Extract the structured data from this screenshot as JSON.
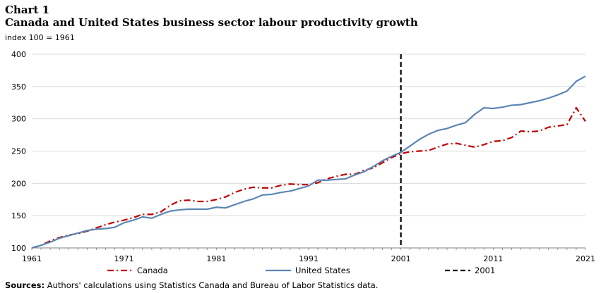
{
  "header": {
    "chart_label": "Chart 1",
    "title": "Canada and United States business sector labour productivity growth",
    "subtitle": "index 100 = 1961"
  },
  "source": {
    "prefix": "Sources:",
    "text": "Authors' calculations using Statistics Canada and Bureau of Labor Statistics data."
  },
  "colors": {
    "canada": "#c00000",
    "united_states": "#5b86b5",
    "marker_2001": "#000000",
    "grid": "#d9d9d9",
    "axis": "#808080"
  },
  "chart_data": {
    "type": "line",
    "title": "Canada and United States business sector labour productivity growth",
    "subtitle": "index 100 = 1961",
    "xlabel": "",
    "ylabel": "",
    "xlim": [
      1961,
      2021
    ],
    "ylim": [
      100,
      400
    ],
    "x_ticks": [
      1961,
      1971,
      1981,
      1991,
      2001,
      2011,
      2021
    ],
    "y_ticks": [
      100,
      150,
      200,
      250,
      300,
      350,
      400
    ],
    "grid": true,
    "legend_position": "bottom",
    "x": [
      1961,
      1962,
      1963,
      1964,
      1965,
      1966,
      1967,
      1968,
      1969,
      1970,
      1971,
      1972,
      1973,
      1974,
      1975,
      1976,
      1977,
      1978,
      1979,
      1980,
      1981,
      1982,
      1983,
      1984,
      1985,
      1986,
      1987,
      1988,
      1989,
      1990,
      1991,
      1992,
      1993,
      1994,
      1995,
      1996,
      1997,
      1998,
      1999,
      2000,
      2001,
      2002,
      2003,
      2004,
      2005,
      2006,
      2007,
      2008,
      2009,
      2010,
      2011,
      2012,
      2013,
      2014,
      2015,
      2016,
      2017,
      2018,
      2019,
      2020,
      2021
    ],
    "series": [
      {
        "name": "Canada",
        "style": "dash-dot",
        "values": [
          100,
          104,
          111,
          116,
          120,
          122,
          126,
          131,
          136,
          140,
          143,
          147,
          152,
          152,
          156,
          166,
          173,
          174,
          172,
          172,
          175,
          179,
          186,
          191,
          194,
          193,
          193,
          197,
          199,
          198,
          198,
          201,
          207,
          211,
          214,
          214,
          220,
          224,
          232,
          240,
          246,
          249,
          250,
          251,
          256,
          261,
          262,
          259,
          256,
          260,
          265,
          266,
          271,
          281,
          280,
          281,
          287,
          289,
          291,
          317,
          296
        ]
      },
      {
        "name": "United States",
        "style": "solid",
        "values": [
          100,
          104,
          109,
          115,
          119,
          123,
          127,
          129,
          130,
          132,
          139,
          143,
          148,
          146,
          152,
          157,
          159,
          160,
          160,
          160,
          163,
          162,
          167,
          172,
          176,
          182,
          183,
          186,
          188,
          192,
          196,
          205,
          205,
          206,
          207,
          213,
          218,
          226,
          235,
          242,
          248,
          258,
          268,
          276,
          282,
          285,
          290,
          294,
          307,
          317,
          316,
          318,
          321,
          322,
          325,
          328,
          332,
          337,
          343,
          358,
          366
        ]
      }
    ],
    "vertical_lines": [
      {
        "name": "2001",
        "x": 2001,
        "style": "dashed"
      }
    ]
  }
}
